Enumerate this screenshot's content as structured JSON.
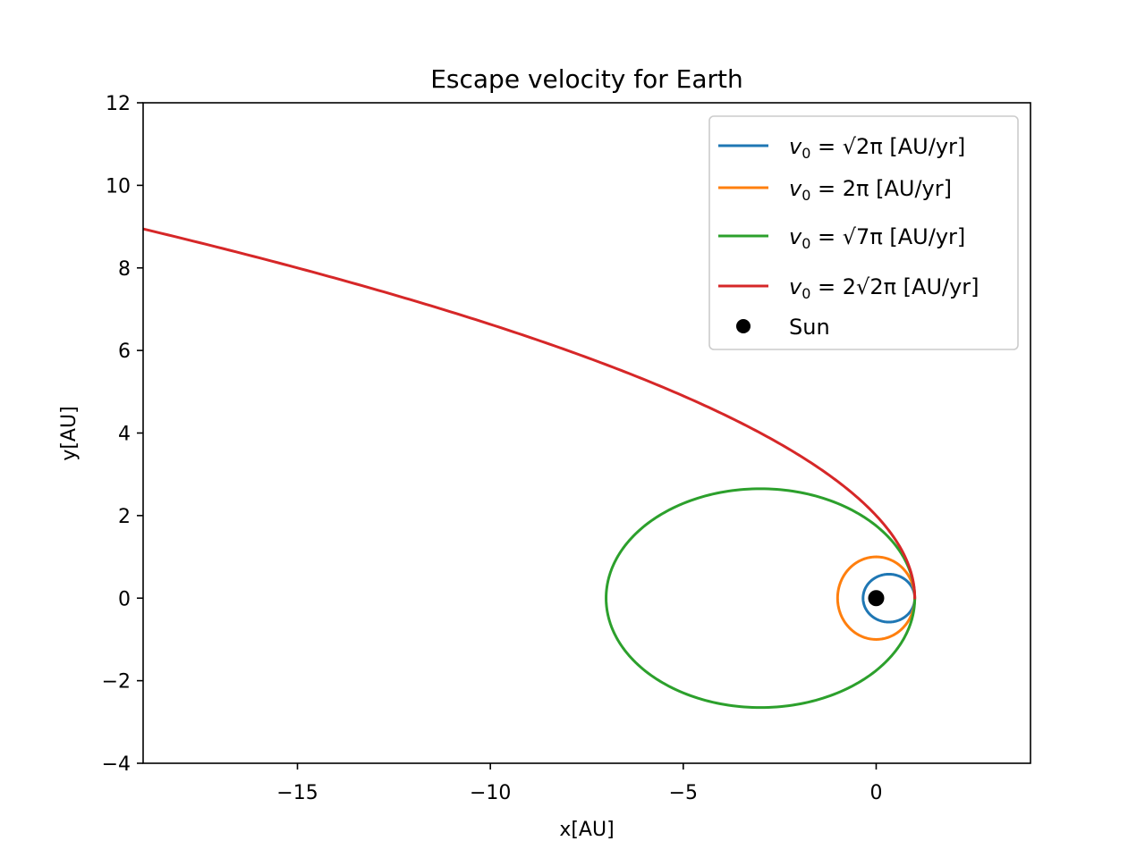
{
  "chart_data": {
    "type": "line",
    "title": "Escape velocity for Earth",
    "xlabel": "x[AU]",
    "ylabel": "y[AU]",
    "xlim": [
      -19,
      4
    ],
    "ylim": [
      -4,
      12
    ],
    "xticks": [
      -15,
      -10,
      -5,
      0
    ],
    "yticks": [
      -4,
      -2,
      0,
      2,
      4,
      6,
      8,
      10,
      12
    ],
    "xtick_labels": [
      "−15",
      "−10",
      "−5",
      "0"
    ],
    "ytick_labels": [
      "−4",
      "−2",
      "0",
      "2",
      "4",
      "6",
      "8",
      "10",
      "12"
    ],
    "grid": false,
    "legend_position": "top-right",
    "series": [
      {
        "name": "v₀ = √2π [AU/yr]",
        "color": "#1f77b4",
        "kind": "ellipse",
        "center": [
          0.33,
          0
        ],
        "semi_axes": [
          0.67,
          0.58
        ]
      },
      {
        "name": "v₀ = 2π [AU/yr]",
        "color": "#ff7f0e",
        "kind": "ellipse",
        "center": [
          0,
          0
        ],
        "semi_axes": [
          1.0,
          1.0
        ]
      },
      {
        "name": "v₀ = √7π [AU/yr]",
        "color": "#2ca02c",
        "kind": "ellipse",
        "center": [
          -3.0,
          0
        ],
        "semi_axes": [
          4.0,
          2.65
        ]
      },
      {
        "name": "v₀ = 2√2π [AU/yr]",
        "color": "#d62728",
        "kind": "parabola",
        "vertex_x": 1.0,
        "focal_param": 2.0,
        "y_range": [
          0,
          8.95
        ]
      }
    ],
    "points": [
      {
        "name": "Sun",
        "x": 0,
        "y": 0,
        "color": "#000000"
      }
    ]
  },
  "legend": {
    "entries": [
      {
        "prefix": "v",
        "sub": "0",
        "eq": " = ",
        "rest": "√2π [AU/yr]"
      },
      {
        "prefix": "v",
        "sub": "0",
        "eq": " = ",
        "rest": "2π [AU/yr]"
      },
      {
        "prefix": "v",
        "sub": "0",
        "eq": " = ",
        "rest": "√7π [AU/yr]"
      },
      {
        "prefix": "v",
        "sub": "0",
        "eq": " = ",
        "rest": "2√2π [AU/yr]"
      }
    ],
    "sun_label": "Sun"
  }
}
